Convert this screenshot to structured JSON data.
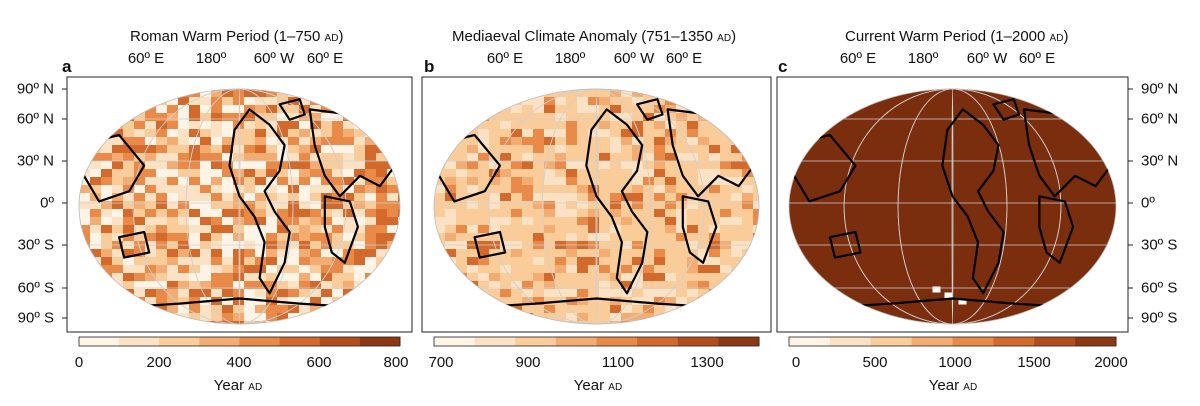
{
  "chart_data": [
    {
      "type": "heatmap",
      "letter": "a",
      "title": "Roman Warm Period (1–750",
      "title_era": "AD",
      "title_close": ")",
      "top_ticks": [
        "60º E",
        "180º",
        "60º W",
        "60º E"
      ],
      "lat_ticks": [
        "90º N",
        "60º N",
        "30º N",
        "0º",
        "30º S",
        "60º S",
        "90º S"
      ],
      "colorbar": {
        "range": [
          0,
          800
        ],
        "ticks": [
          "0",
          "200",
          "400",
          "600",
          "800"
        ],
        "label": "Year",
        "label_era": "AD",
        "colors": [
          "#fdf3e7",
          "#fbe2c5",
          "#f9cc9a",
          "#f3ad72",
          "#e98a49",
          "#d4692c",
          "#b34e1c",
          "#8e3812"
        ]
      }
    },
    {
      "type": "heatmap",
      "letter": "b",
      "title": "Mediaeval Climate Anomaly (751–1350",
      "title_era": "AD",
      "title_close": ")",
      "top_ticks": [
        "60º E",
        "180º",
        "60º W",
        "60º E"
      ],
      "colorbar": {
        "range": [
          700,
          1400
        ],
        "ticks": [
          "700",
          "900",
          "1100",
          "1300"
        ],
        "label": "Year",
        "label_era": "AD",
        "colors": [
          "#fdf3e7",
          "#fbe2c5",
          "#f9cc9a",
          "#f3ad72",
          "#e98a49",
          "#d4692c",
          "#b34e1c",
          "#8e3812"
        ]
      }
    },
    {
      "type": "heatmap",
      "letter": "c",
      "title": "Current Warm Period (1–2000",
      "title_era": "AD",
      "title_close": ")",
      "top_ticks": [
        "60º E",
        "180º",
        "60º W",
        "60º E"
      ],
      "lat_ticks": [
        "90º N",
        "60º N",
        "30º N",
        "0º",
        "30º S",
        "60º S",
        "90º S"
      ],
      "colorbar": {
        "range": [
          0,
          2000
        ],
        "ticks": [
          "0",
          "500",
          "1000",
          "1500",
          "2000"
        ],
        "label": "Year",
        "label_era": "AD",
        "colors": [
          "#fdf3e7",
          "#fbe2c5",
          "#f9cc9a",
          "#f3ad72",
          "#e98a49",
          "#d4692c",
          "#b34e1c",
          "#8e3812"
        ]
      }
    }
  ]
}
